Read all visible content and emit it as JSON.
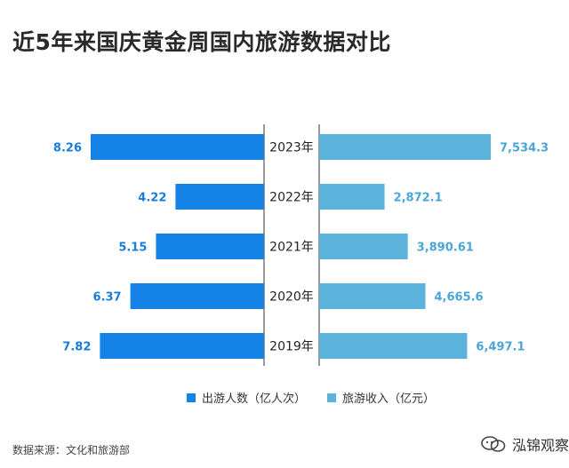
{
  "title": "近5年来国庆黄金周国内旅游数据对比",
  "source": "数据来源：文化和旅游部",
  "watermark": "泓锦观察",
  "colors": {
    "left": "#1482e6",
    "right": "#5bb3dc",
    "left_label": "#1a7bd8",
    "right_label": "#4aa6d6"
  },
  "chart_data": {
    "type": "bar",
    "categories": [
      "2023年",
      "2022年",
      "2021年",
      "2020年",
      "2019年"
    ],
    "series": [
      {
        "name": "出游人数（亿人次）",
        "values": [
          8.26,
          4.22,
          5.15,
          6.37,
          7.82
        ],
        "labels": [
          "8.26",
          "4.22",
          "5.15",
          "6.37",
          "7.82"
        ]
      },
      {
        "name": "旅游收入（亿元）",
        "values": [
          7534.3,
          2872.1,
          3890.61,
          4665.6,
          6497.1
        ],
        "labels": [
          "7,534.3",
          "2,872.1",
          "3,890.61",
          "4,665.6",
          "6,497.1"
        ]
      }
    ],
    "legend_position": "bottom"
  }
}
